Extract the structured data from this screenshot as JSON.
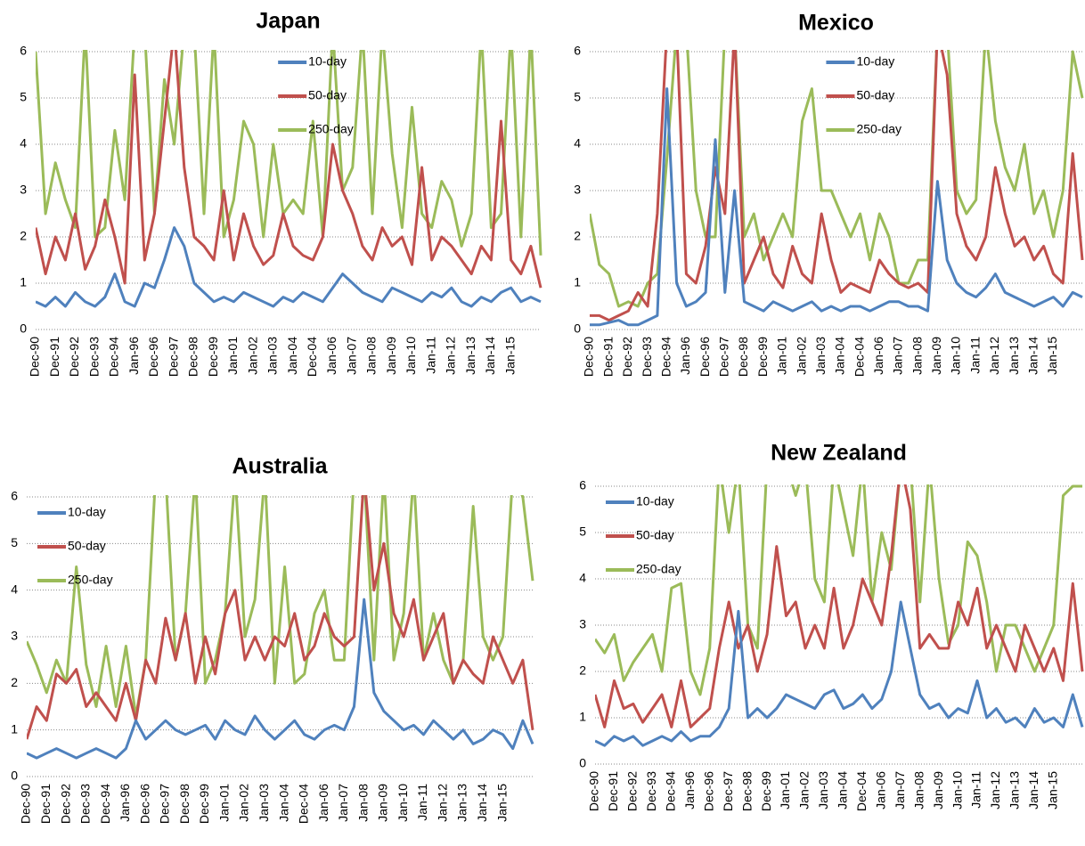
{
  "chart_data": [
    {
      "type": "line",
      "title": "Japan",
      "legend": "top-center",
      "grid": true,
      "ylim": [
        0,
        6
      ],
      "yticks": [
        0,
        1,
        2,
        3,
        4,
        5,
        6
      ],
      "categories": [
        "Dec-90",
        null,
        "Dec-91",
        null,
        "Dec-92",
        null,
        "Dec-93",
        null,
        "Dec-94",
        null,
        "Jan-96",
        null,
        "Dec-96",
        null,
        "Dec-97",
        null,
        "Dec-98",
        null,
        "Dec-99",
        null,
        "Jan-01",
        null,
        "Jan-02",
        null,
        "Jan-03",
        null,
        "Jan-04",
        null,
        "Dec-04",
        null,
        "Jan-06",
        null,
        "Jan-07",
        null,
        "Jan-08",
        null,
        "Jan-09",
        null,
        "Jan-10",
        null,
        "Jan-11",
        null,
        "Jan-12",
        null,
        "Jan-13",
        null,
        "Jan-14",
        null,
        "Jan-15",
        null,
        null,
        null
      ],
      "series": [
        {
          "name": "10-day",
          "color": "#4f81bd",
          "values": [
            0.6,
            0.5,
            0.7,
            0.5,
            0.8,
            0.6,
            0.5,
            0.7,
            1.2,
            0.6,
            0.5,
            1.0,
            0.9,
            1.5,
            2.2,
            1.8,
            1.0,
            0.8,
            0.6,
            0.7,
            0.6,
            0.8,
            0.7,
            0.6,
            0.5,
            0.7,
            0.6,
            0.8,
            0.7,
            0.6,
            0.9,
            1.2,
            1.0,
            0.8,
            0.7,
            0.6,
            0.9,
            0.8,
            0.7,
            0.6,
            0.8,
            0.7,
            0.9,
            0.6,
            0.5,
            0.7,
            0.6,
            0.8,
            0.9,
            0.6,
            0.7,
            0.6
          ]
        },
        {
          "name": "50-day",
          "color": "#c0504d",
          "values": [
            2.2,
            1.2,
            2.0,
            1.5,
            2.5,
            1.3,
            1.8,
            2.8,
            2.0,
            1.0,
            5.5,
            1.5,
            2.5,
            4.5,
            6.5,
            3.5,
            2.0,
            1.8,
            1.5,
            3.0,
            1.5,
            2.5,
            1.8,
            1.4,
            1.6,
            2.5,
            1.8,
            1.6,
            1.5,
            2.0,
            4.0,
            3.0,
            2.5,
            1.8,
            1.5,
            2.2,
            1.8,
            2.0,
            1.4,
            3.5,
            1.5,
            2.0,
            1.8,
            1.5,
            1.2,
            1.8,
            1.5,
            4.5,
            1.5,
            1.2,
            1.8,
            0.9
          ]
        },
        {
          "name": "250-day",
          "color": "#9bbb59",
          "values": [
            6.0,
            2.5,
            3.6,
            2.8,
            2.2,
            6.5,
            2.0,
            2.2,
            4.3,
            2.8,
            6.5,
            6.5,
            2.5,
            5.4,
            4.0,
            6.5,
            6.5,
            2.5,
            6.5,
            2.0,
            2.8,
            4.5,
            4.0,
            2.0,
            4.0,
            2.5,
            2.8,
            2.5,
            4.5,
            2.0,
            6.5,
            3.0,
            3.5,
            6.5,
            2.5,
            6.5,
            3.8,
            2.2,
            4.8,
            2.5,
            2.2,
            3.2,
            2.8,
            1.8,
            2.5,
            6.5,
            2.2,
            2.5,
            6.5,
            2.0,
            6.5,
            1.6
          ]
        }
      ]
    },
    {
      "type": "line",
      "title": "Mexico",
      "legend": "top-center",
      "grid": true,
      "ylim": [
        0,
        6
      ],
      "yticks": [
        0,
        1,
        2,
        3,
        4,
        5,
        6
      ],
      "categories": [
        "Dec-90",
        null,
        "Dec-91",
        null,
        "Dec-92",
        null,
        "Dec-93",
        null,
        "Dec-94",
        null,
        "Jan-96",
        null,
        "Dec-96",
        null,
        "Dec-97",
        null,
        "Dec-98",
        null,
        "Dec-99",
        null,
        "Jan-01",
        null,
        "Jan-02",
        null,
        "Jan-03",
        null,
        "Jan-04",
        null,
        "Dec-04",
        null,
        "Jan-06",
        null,
        "Jan-07",
        null,
        "Jan-08",
        null,
        "Jan-09",
        null,
        "Jan-10",
        null,
        "Jan-11",
        null,
        "Jan-12",
        null,
        "Jan-13",
        null,
        "Jan-14",
        null,
        "Jan-15",
        null,
        null,
        null
      ],
      "series": [
        {
          "name": "10-day",
          "color": "#4f81bd",
          "values": [
            0.1,
            0.1,
            0.15,
            0.2,
            0.1,
            0.1,
            0.2,
            0.3,
            5.2,
            1.0,
            0.5,
            0.6,
            0.8,
            4.1,
            0.8,
            3.0,
            0.6,
            0.5,
            0.4,
            0.6,
            0.5,
            0.4,
            0.5,
            0.6,
            0.4,
            0.5,
            0.4,
            0.5,
            0.5,
            0.4,
            0.5,
            0.6,
            0.6,
            0.5,
            0.5,
            0.4,
            3.2,
            1.5,
            1.0,
            0.8,
            0.7,
            0.9,
            1.2,
            0.8,
            0.7,
            0.6,
            0.5,
            0.6,
            0.7,
            0.5,
            0.8,
            0.7
          ]
        },
        {
          "name": "50-day",
          "color": "#c0504d",
          "values": [
            0.3,
            0.3,
            0.2,
            0.3,
            0.4,
            0.8,
            0.5,
            2.5,
            6.5,
            6.5,
            1.2,
            1.0,
            1.8,
            3.5,
            2.5,
            6.5,
            1.0,
            1.5,
            2.0,
            1.2,
            0.9,
            1.8,
            1.2,
            1.0,
            2.5,
            1.5,
            0.8,
            1.0,
            0.9,
            0.8,
            1.5,
            1.2,
            1.0,
            0.9,
            1.0,
            0.8,
            6.5,
            5.5,
            2.5,
            1.8,
            1.5,
            2.0,
            3.5,
            2.5,
            1.8,
            2.0,
            1.5,
            1.8,
            1.2,
            1.0,
            3.8,
            1.5
          ]
        },
        {
          "name": "250-day",
          "color": "#9bbb59",
          "values": [
            2.5,
            1.4,
            1.2,
            0.5,
            0.6,
            0.5,
            1.0,
            1.2,
            3.7,
            6.5,
            6.5,
            3.0,
            2.0,
            2.0,
            6.5,
            6.5,
            2.0,
            2.5,
            1.5,
            2.0,
            2.5,
            2.0,
            4.5,
            5.2,
            3.0,
            3.0,
            2.5,
            2.0,
            2.5,
            1.5,
            2.5,
            2.0,
            1.0,
            1.0,
            1.5,
            1.5,
            6.5,
            6.5,
            3.0,
            2.5,
            2.8,
            6.5,
            4.5,
            3.5,
            3.0,
            4.0,
            2.5,
            3.0,
            2.0,
            3.0,
            6.0,
            5.0
          ]
        }
      ]
    },
    {
      "type": "line",
      "title": "Australia",
      "legend": "top-left",
      "grid": true,
      "ylim": [
        0,
        6
      ],
      "yticks": [
        0,
        1,
        2,
        3,
        4,
        5,
        6
      ],
      "categories": [
        "Dec-90",
        null,
        "Dec-91",
        null,
        "Dec-92",
        null,
        "Dec-93",
        null,
        "Dec-94",
        null,
        "Jan-96",
        null,
        "Dec-96",
        null,
        "Dec-97",
        null,
        "Dec-98",
        null,
        "Dec-99",
        null,
        "Jan-01",
        null,
        "Jan-02",
        null,
        "Jan-03",
        null,
        "Jan-04",
        null,
        "Dec-04",
        null,
        "Jan-06",
        null,
        "Jan-07",
        null,
        "Jan-08",
        null,
        "Jan-09",
        null,
        "Jan-10",
        null,
        "Jan-11",
        null,
        "Jan-12",
        null,
        "Jan-13",
        null,
        "Jan-14",
        null,
        "Jan-15",
        null,
        null,
        null
      ],
      "series": [
        {
          "name": "10-day",
          "color": "#4f81bd",
          "values": [
            0.5,
            0.4,
            0.5,
            0.6,
            0.5,
            0.4,
            0.5,
            0.6,
            0.5,
            0.4,
            0.6,
            1.2,
            0.8,
            1.0,
            1.2,
            1.0,
            0.9,
            1.0,
            1.1,
            0.8,
            1.2,
            1.0,
            0.9,
            1.3,
            1.0,
            0.8,
            1.0,
            1.2,
            0.9,
            0.8,
            1.0,
            1.1,
            1.0,
            1.5,
            3.8,
            1.8,
            1.4,
            1.2,
            1.0,
            1.1,
            0.9,
            1.2,
            1.0,
            0.8,
            1.0,
            0.7,
            0.8,
            1.0,
            0.9,
            0.6,
            1.2,
            0.7
          ]
        },
        {
          "name": "50-day",
          "color": "#c0504d",
          "values": [
            0.8,
            1.5,
            1.2,
            2.2,
            2.0,
            2.3,
            1.5,
            1.8,
            1.5,
            1.2,
            2.0,
            1.2,
            2.5,
            2.0,
            3.4,
            2.5,
            3.5,
            2.0,
            3.0,
            2.2,
            3.5,
            4.0,
            2.5,
            3.0,
            2.5,
            3.0,
            2.8,
            3.5,
            2.5,
            2.8,
            3.5,
            3.0,
            2.8,
            3.0,
            6.5,
            4.0,
            5.0,
            3.5,
            3.0,
            3.8,
            2.5,
            3.0,
            3.5,
            2.0,
            2.5,
            2.2,
            2.0,
            3.0,
            2.5,
            2.0,
            2.5,
            1.0
          ]
        },
        {
          "name": "250-day",
          "color": "#9bbb59",
          "values": [
            2.9,
            2.4,
            1.8,
            2.5,
            2.0,
            4.5,
            2.4,
            1.5,
            2.8,
            1.5,
            2.8,
            1.3,
            2.5,
            6.5,
            6.5,
            2.5,
            3.5,
            6.5,
            2.0,
            2.5,
            3.5,
            6.5,
            3.0,
            3.8,
            6.5,
            2.0,
            4.5,
            2.0,
            2.2,
            3.5,
            4.0,
            2.5,
            2.5,
            6.5,
            6.5,
            2.5,
            6.5,
            2.5,
            3.5,
            6.5,
            2.5,
            3.5,
            2.5,
            2.0,
            2.5,
            5.8,
            3.0,
            2.5,
            3.0,
            6.5,
            6.0,
            4.2
          ]
        }
      ]
    },
    {
      "type": "line",
      "title": "New Zealand",
      "legend": "top-left",
      "grid": true,
      "ylim": [
        0,
        6
      ],
      "yticks": [
        0,
        1,
        2,
        3,
        4,
        5,
        6
      ],
      "categories": [
        "Dec-90",
        null,
        "Dec-91",
        null,
        "Dec-92",
        null,
        "Dec-93",
        null,
        "Dec-94",
        null,
        "Jan-96",
        null,
        "Dec-96",
        null,
        "Dec-97",
        null,
        "Dec-98",
        null,
        "Dec-99",
        null,
        "Jan-01",
        null,
        "Jan-02",
        null,
        "Jan-03",
        null,
        "Jan-04",
        null,
        "Dec-04",
        null,
        "Jan-06",
        null,
        "Jan-07",
        null,
        "Jan-08",
        null,
        "Jan-09",
        null,
        "Jan-10",
        null,
        "Jan-11",
        null,
        "Jan-12",
        null,
        "Jan-13",
        null,
        "Jan-14",
        null,
        "Jan-15",
        null,
        null,
        null
      ],
      "series": [
        {
          "name": "10-day",
          "color": "#4f81bd",
          "values": [
            0.5,
            0.4,
            0.6,
            0.5,
            0.6,
            0.4,
            0.5,
            0.6,
            0.5,
            0.7,
            0.5,
            0.6,
            0.6,
            0.8,
            1.2,
            3.3,
            1.0,
            1.2,
            1.0,
            1.2,
            1.5,
            1.4,
            1.3,
            1.2,
            1.5,
            1.6,
            1.2,
            1.3,
            1.5,
            1.2,
            1.4,
            2.0,
            3.5,
            2.5,
            1.5,
            1.2,
            1.3,
            1.0,
            1.2,
            1.1,
            1.8,
            1.0,
            1.2,
            0.9,
            1.0,
            0.8,
            1.2,
            0.9,
            1.0,
            0.8,
            1.5,
            0.8
          ]
        },
        {
          "name": "50-day",
          "color": "#c0504d",
          "values": [
            1.5,
            0.8,
            1.8,
            1.2,
            1.3,
            0.9,
            1.2,
            1.5,
            0.8,
            1.8,
            0.8,
            1.0,
            1.2,
            2.5,
            3.5,
            2.5,
            3.0,
            2.0,
            2.8,
            4.7,
            3.2,
            3.5,
            2.5,
            3.0,
            2.5,
            3.8,
            2.5,
            3.0,
            4.0,
            3.5,
            3.0,
            4.5,
            6.5,
            5.5,
            2.5,
            2.8,
            2.5,
            2.5,
            3.5,
            3.0,
            3.8,
            2.5,
            3.0,
            2.5,
            2.0,
            3.0,
            2.5,
            2.0,
            2.5,
            1.8,
            3.9,
            2.0
          ]
        },
        {
          "name": "250-day",
          "color": "#9bbb59",
          "values": [
            2.7,
            2.4,
            2.8,
            1.8,
            2.2,
            2.5,
            2.8,
            2.0,
            3.8,
            3.9,
            2.0,
            1.5,
            2.5,
            6.5,
            5.0,
            6.5,
            3.0,
            2.5,
            6.5,
            6.5,
            6.5,
            5.8,
            6.5,
            4.0,
            3.5,
            6.5,
            5.5,
            4.5,
            6.5,
            3.5,
            5.0,
            4.2,
            6.5,
            6.5,
            3.5,
            6.5,
            4.0,
            2.6,
            3.0,
            4.8,
            4.5,
            3.5,
            2.0,
            3.0,
            3.0,
            2.5,
            2.0,
            2.5,
            3.0,
            5.8,
            6.0,
            6.0
          ]
        }
      ]
    }
  ]
}
